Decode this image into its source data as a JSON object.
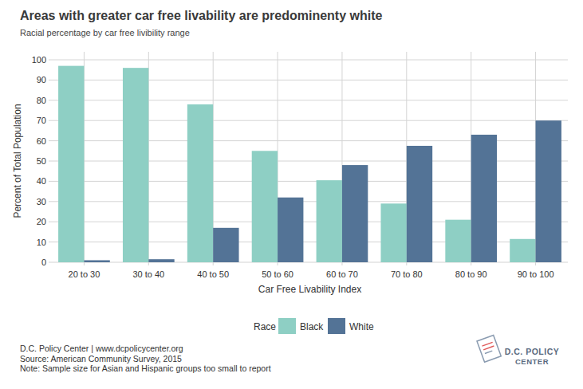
{
  "chart_data": {
    "type": "bar",
    "title": "Areas with greater car free livability are predominenty white",
    "subtitle": "Racial percentage by car free livibility range",
    "x_label": "Car Free Livability Index",
    "y_label": "Percent of Total Population",
    "categories": [
      "20 to 30",
      "30 to 40",
      "40 to 50",
      "50 to 60",
      "60 to 70",
      "70 to 80",
      "80 to 90",
      "90 to 100"
    ],
    "series": [
      {
        "name": "Black",
        "color": "#8ecfc4",
        "values": [
          97,
          96,
          78,
          55,
          40.5,
          29,
          21,
          11.5
        ]
      },
      {
        "name": "White",
        "color": "#537396",
        "values": [
          1,
          1.5,
          17,
          32,
          48,
          57.5,
          63,
          70
        ]
      }
    ],
    "ylim": [
      0,
      100
    ],
    "yticks": [
      0,
      10,
      20,
      30,
      40,
      50,
      60,
      70,
      80,
      90,
      100
    ],
    "grid": true,
    "legend": "bottom",
    "legend_title": "Race",
    "annotations": [
      "D.C. Policy Center | www.dcpolicycenter.org",
      "Source: American Community Survey, 2015",
      "Note: Sample size for Asian and Hispanic groups too small to report"
    ],
    "logo": [
      "D.C. POLICY",
      "CENTER"
    ]
  }
}
